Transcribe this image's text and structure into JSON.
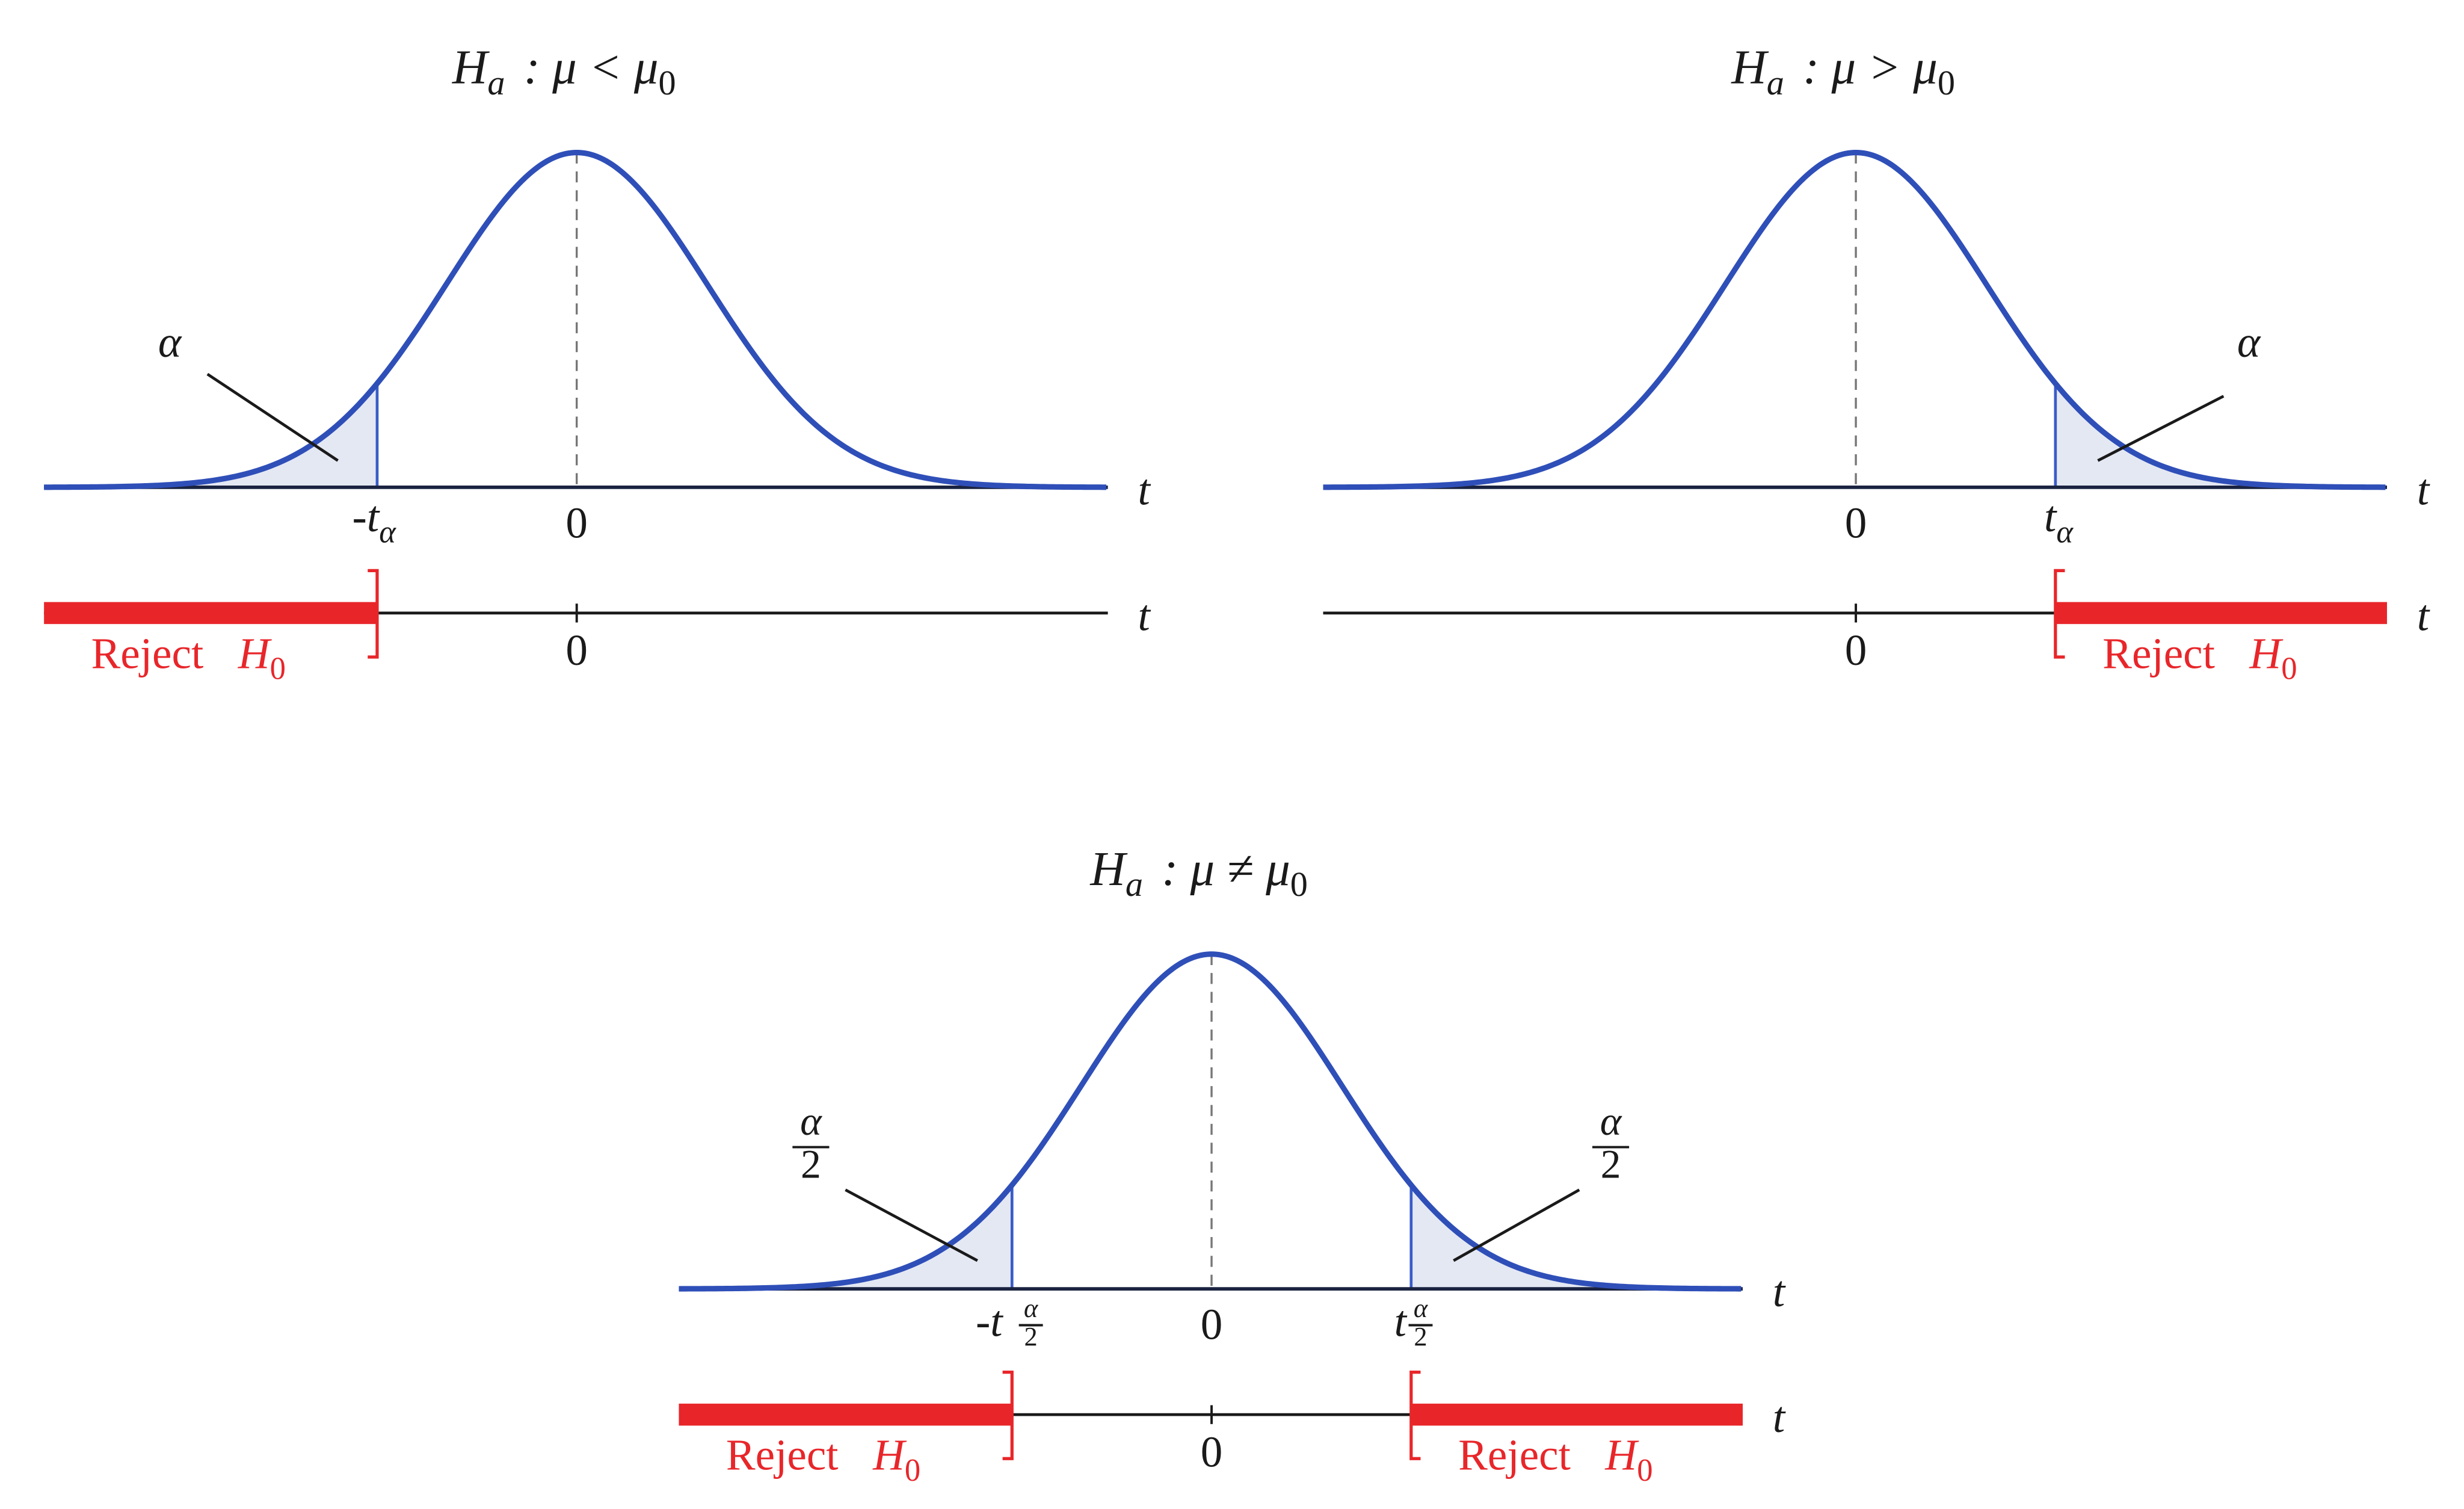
{
  "panels": [
    {
      "title": {
        "h": "H",
        "h_sub": "a",
        "relation": ": μ < μ",
        "mu_sub": "0"
      },
      "tail_label": "α",
      "critical": {
        "t": "-t",
        "sub": "α"
      },
      "center": "0",
      "axis": "t",
      "reject": {
        "text": "Reject",
        "h": "H",
        "h_sub": "0"
      }
    },
    {
      "title": {
        "h": "H",
        "h_sub": "a",
        "relation": ": μ > μ",
        "mu_sub": "0"
      },
      "tail_label": "α",
      "critical": {
        "t": "t",
        "sub": "α"
      },
      "center": "0",
      "axis": "t",
      "reject": {
        "text": "Reject",
        "h": "H",
        "h_sub": "0"
      }
    },
    {
      "title": {
        "h": "H",
        "h_sub": "a",
        "relation": ": μ ≠ μ",
        "mu_sub": "0"
      },
      "tail_label": {
        "num": "α",
        "den": "2"
      },
      "critical_left": {
        "t": "-t",
        "num": "α",
        "den": "2"
      },
      "critical_right": {
        "t": "t",
        "num": "α",
        "den": "2"
      },
      "center": "0",
      "axis": "t",
      "reject": {
        "text": "Reject",
        "h": "H",
        "h_sub": "0"
      }
    }
  ]
}
